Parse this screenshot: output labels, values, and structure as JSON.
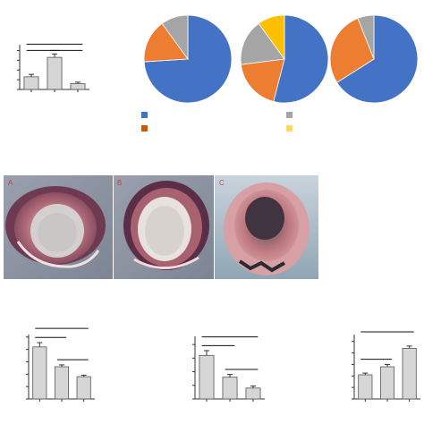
{
  "colors": {
    "bar_fill": "#d6d6d6",
    "bar_stroke": "#555555",
    "axis": "#333333",
    "pie_blue": "#4472c4",
    "pie_orange": "#ed7d31",
    "pie_gray": "#a5a5a5",
    "pie_yellow": "#ffc000",
    "photo_bg": "#8a8fa0"
  },
  "photos": {
    "panels": [
      {
        "letter": "A"
      },
      {
        "letter": "B"
      },
      {
        "letter": "C"
      }
    ]
  },
  "chart_data": [
    {
      "type": "bar",
      "panel": "top-left",
      "categories": [
        "",
        "",
        ""
      ],
      "values": [
        1.3,
        3.3,
        0.6
      ],
      "errors": [
        0.25,
        0.35,
        0.15
      ],
      "ylim": [
        0,
        4.6
      ],
      "yticks": [
        0,
        1,
        2,
        3,
        4
      ],
      "significance_brackets": [
        [
          0,
          2
        ],
        [
          0,
          1
        ],
        [
          1,
          2
        ]
      ]
    },
    {
      "type": "pie",
      "panel": "pie-1",
      "slices": [
        {
          "value": 74,
          "color": "#4472c4"
        },
        {
          "value": 16,
          "color": "#ed7d31"
        },
        {
          "value": 10,
          "color": "#a5a5a5"
        }
      ]
    },
    {
      "type": "pie",
      "panel": "pie-2",
      "slices": [
        {
          "value": 54,
          "color": "#4472c4"
        },
        {
          "value": 19,
          "color": "#ed7d31"
        },
        {
          "value": 17,
          "color": "#a5a5a5"
        },
        {
          "value": 10,
          "color": "#ffc000"
        }
      ]
    },
    {
      "type": "pie",
      "panel": "pie-3",
      "slices": [
        {
          "value": 66,
          "color": "#4472c4"
        },
        {
          "value": 28,
          "color": "#ed7d31"
        },
        {
          "value": 6,
          "color": "#a5a5a5"
        }
      ]
    },
    {
      "type": "bar",
      "panel": "bottom-left",
      "categories": [
        "",
        "",
        ""
      ],
      "values": [
        4.2,
        2.6,
        1.8
      ],
      "errors": [
        0.35,
        0.15,
        0.12
      ],
      "ylim": [
        0,
        5.2
      ],
      "yticks": [
        0,
        1,
        2,
        3,
        4,
        5
      ],
      "significance_brackets": [
        [
          0,
          2
        ],
        [
          0,
          1
        ],
        [
          1,
          2
        ]
      ]
    },
    {
      "type": "bar",
      "panel": "bottom-middle",
      "categories": [
        "",
        "",
        ""
      ],
      "values": [
        3.2,
        1.6,
        0.8
      ],
      "errors": [
        0.35,
        0.2,
        0.15
      ],
      "ylim": [
        0,
        4.6
      ],
      "yticks": [
        0,
        1,
        2,
        3,
        4
      ],
      "significance_brackets": [
        [
          0,
          2
        ],
        [
          0,
          1
        ],
        [
          1,
          2
        ]
      ]
    },
    {
      "type": "bar",
      "panel": "bottom-right",
      "categories": [
        "",
        "",
        ""
      ],
      "values": [
        2.1,
        2.8,
        4.4
      ],
      "errors": [
        0.15,
        0.2,
        0.2
      ],
      "ylim": [
        0,
        5.6
      ],
      "yticks": [
        0,
        1,
        2,
        3,
        4,
        5
      ],
      "significance_brackets": [
        [
          0,
          2
        ],
        [
          0,
          1
        ]
      ]
    }
  ]
}
